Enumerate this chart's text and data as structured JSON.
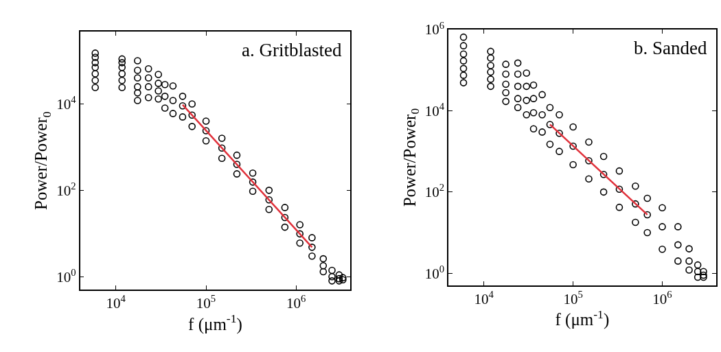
{
  "chart_data": [
    {
      "type": "scatter",
      "title": "a. Gritblasted",
      "xlabel": "f (μm$^{-1}$)",
      "ylabel": "Power/Power$_{0}$",
      "log": "xy",
      "xlim": [
        4000,
        4000000
      ],
      "ylim": [
        0.5,
        470000
      ],
      "xticks": [
        {
          "value": 10000,
          "label": "10$^{4}$"
        },
        {
          "value": 100000,
          "label": "10$^{5}$"
        },
        {
          "value": 1000000,
          "label": "10$^{6}$"
        }
      ],
      "yticks": [
        {
          "value": 1,
          "label": "10$^{0}$"
        },
        {
          "value": 100,
          "label": "10$^{2}$"
        },
        {
          "value": 10000,
          "label": "10$^{4}$"
        }
      ],
      "series": [
        {
          "color": "#000000",
          "marker": "circle",
          "x": [
            5900,
            5900,
            5900,
            5900,
            5900,
            5900,
            5900,
            11700,
            11700,
            11700,
            11700,
            11700,
            11700,
            17400,
            17400,
            17400,
            17400,
            17400,
            17400,
            23000,
            23000,
            23000,
            23000,
            29600,
            29600,
            29600,
            29600,
            35000,
            35000,
            35000,
            43000,
            43000,
            43000,
            55000,
            55000,
            55000,
            70000,
            70000,
            70000,
            100000,
            100000,
            100000,
            150000,
            150000,
            150000,
            220000,
            220000,
            220000,
            330000,
            330000,
            330000,
            500000,
            500000,
            500000,
            750000,
            750000,
            750000,
            1100000,
            1100000,
            1100000,
            1500000,
            1500000,
            1500000,
            2000000,
            2000000,
            2000000,
            2500000,
            2500000,
            2500000,
            3000000,
            3000000,
            3000000,
            3300000,
            3300000
          ],
          "values": [
            150000,
            120000,
            90000,
            70000,
            50000,
            35000,
            24000,
            110000,
            90000,
            70000,
            50000,
            35000,
            24000,
            100000,
            60000,
            40000,
            25000,
            18000,
            12000,
            65000,
            40000,
            25000,
            14000,
            48000,
            30000,
            20000,
            13000,
            28000,
            15000,
            8000,
            26000,
            12000,
            6000,
            15000,
            9000,
            5000,
            10000,
            5500,
            3000,
            4000,
            2400,
            1400,
            1600,
            950,
            550,
            650,
            400,
            240,
            250,
            155,
            95,
            100,
            60,
            36,
            40,
            23.5,
            14,
            16,
            9.8,
            6,
            8,
            4.8,
            3,
            2.6,
            1.8,
            1.3,
            1.4,
            1.0,
            0.8,
            1.1,
            0.9,
            0.8,
            0.95,
            0.85
          ]
        },
        {
          "type": "line",
          "color": "#e0303a",
          "x": [
            55000,
            1500000
          ],
          "values": [
            9600,
            4.8
          ]
        }
      ]
    },
    {
      "type": "scatter",
      "title": "b. Sanded",
      "xlabel": "f (μm$^{-1}$)",
      "ylabel": "Power/Power$_{0}$",
      "log": "xy",
      "xlim": [
        4000,
        4000000
      ],
      "ylim": [
        0.5,
        1000000
      ],
      "xticks": [
        {
          "value": 10000,
          "label": "10$^{4}$"
        },
        {
          "value": 100000,
          "label": "10$^{5}$"
        },
        {
          "value": 1000000,
          "label": "10$^{6}$"
        }
      ],
      "yticks": [
        {
          "value": 1,
          "label": "10$^{0}$"
        },
        {
          "value": 100,
          "label": "10$^{2}$"
        },
        {
          "value": 10000,
          "label": "10$^{4}$"
        },
        {
          "value": 1000000,
          "label": "10$^{6}$"
        }
      ],
      "series": [
        {
          "color": "#000000",
          "marker": "circle",
          "x": [
            5900,
            5900,
            5900,
            5900,
            5900,
            5900,
            5900,
            11900,
            11900,
            11900,
            11900,
            11900,
            11900,
            17600,
            17600,
            17600,
            17600,
            17600,
            24000,
            24000,
            24000,
            24000,
            24000,
            30000,
            30000,
            30000,
            30000,
            36000,
            36000,
            36000,
            36000,
            45000,
            45000,
            45000,
            55000,
            55000,
            55000,
            70000,
            70000,
            70000,
            100000,
            100000,
            100000,
            150000,
            150000,
            150000,
            220000,
            220000,
            220000,
            330000,
            330000,
            330000,
            500000,
            500000,
            500000,
            680000,
            680000,
            680000,
            1000000,
            1000000,
            1000000,
            1500000,
            1500000,
            1500000,
            2000000,
            2000000,
            2000000,
            2500000,
            2500000,
            2500000,
            2900000,
            2900000,
            2900000
          ],
          "values": [
            650000,
            400000,
            250000,
            170000,
            110000,
            75000,
            49000,
            290000,
            200000,
            130000,
            90000,
            60000,
            40000,
            140000,
            80000,
            45000,
            28000,
            17000,
            150000,
            80000,
            40000,
            20000,
            12000,
            85000,
            40000,
            18000,
            8000,
            43000,
            20000,
            9000,
            3600,
            25000,
            8000,
            3000,
            12000,
            4600,
            1500,
            8000,
            2800,
            1000,
            4000,
            1350,
            470,
            1700,
            590,
            210,
            750,
            270,
            100,
            330,
            117,
            42,
            140,
            51,
            18,
            70,
            27.6,
            10,
            41,
            14,
            3.9,
            14,
            5,
            2,
            4,
            2,
            1.2,
            1.6,
            1.1,
            0.8,
            1.1,
            0.9,
            0.8
          ]
        },
        {
          "type": "line",
          "color": "#e0303a",
          "x": [
            55000,
            680000
          ],
          "values": [
            4600,
            27.6
          ]
        }
      ]
    }
  ]
}
